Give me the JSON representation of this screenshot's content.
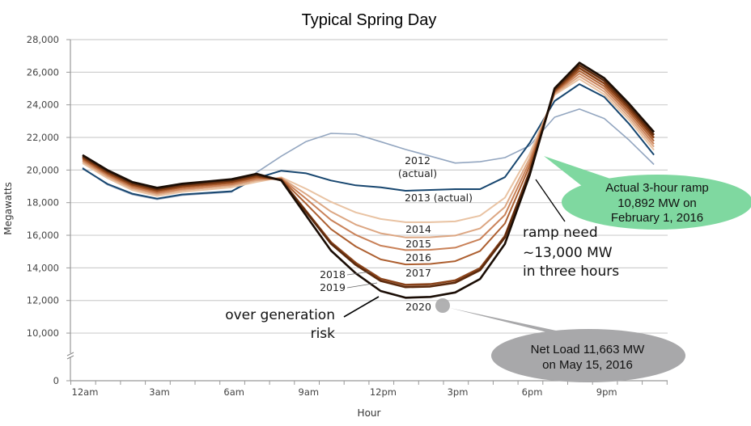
{
  "chart_data": {
    "type": "line",
    "title": "Typical Spring Day",
    "xlabel": "Hour",
    "ylabel": "Megawatts",
    "ylim": [
      0,
      28000
    ],
    "yaxis_break": [
      0,
      10000
    ],
    "yticks": [
      "0",
      "10,000",
      "12,000",
      "14,000",
      "16,000",
      "18,000",
      "20,000",
      "22,000",
      "24,000",
      "26,000",
      "28,000"
    ],
    "ytick_values": [
      0,
      10000,
      12000,
      14000,
      16000,
      18000,
      20000,
      22000,
      24000,
      26000,
      28000
    ],
    "xticks": [
      "12am",
      "3am",
      "6am",
      "9am",
      "12pm",
      "3pm",
      "6pm",
      "9pm"
    ],
    "x": [
      0,
      1,
      2,
      3,
      4,
      5,
      6,
      7,
      8,
      9,
      10,
      11,
      12,
      13,
      14,
      15,
      16,
      17,
      18,
      19,
      20,
      21,
      22,
      23
    ],
    "grid": true,
    "series": [
      {
        "name": "2012",
        "label": [
          "2012",
          "(actual)"
        ],
        "color": "#93a6c0",
        "values": [
          20150,
          19100,
          18500,
          18200,
          18450,
          18550,
          18650,
          19850,
          20850,
          21750,
          22250,
          22200,
          21740,
          21260,
          20850,
          20430,
          20510,
          20760,
          21500,
          23240,
          23740,
          23160,
          21830,
          20340
        ]
      },
      {
        "name": "2013",
        "label": [
          "2013 (actual)"
        ],
        "color": "#17466f",
        "values": [
          20100,
          19150,
          18550,
          18250,
          18500,
          18600,
          18700,
          19500,
          19960,
          19800,
          19360,
          19060,
          18940,
          18730,
          18780,
          18830,
          18830,
          19560,
          21670,
          24230,
          25270,
          24480,
          22830,
          20930
        ]
      },
      {
        "name": "2014",
        "label": [
          "2014"
        ],
        "color": "#e9c3a3",
        "values": [
          20420,
          19500,
          18770,
          18410,
          18660,
          18800,
          18940,
          19270,
          19550,
          18850,
          18050,
          17400,
          17000,
          16800,
          16800,
          16850,
          17200,
          18300,
          21000,
          24610,
          25580,
          24640,
          23070,
          21230
        ]
      },
      {
        "name": "2015",
        "label": [
          "2015"
        ],
        "color": "#dca682",
        "values": [
          20520,
          19600,
          18870,
          18510,
          18760,
          18900,
          19040,
          19370,
          19510,
          18520,
          17450,
          16650,
          16120,
          15870,
          15880,
          15980,
          16420,
          17730,
          20740,
          24680,
          25750,
          24810,
          23240,
          21420
        ]
      },
      {
        "name": "2016",
        "label": [
          "2016"
        ],
        "color": "#c98158",
        "values": [
          20600,
          19680,
          18950,
          18590,
          18840,
          18980,
          19120,
          19450,
          19480,
          18240,
          16940,
          16020,
          15360,
          15090,
          15110,
          15240,
          15760,
          17250,
          20520,
          24750,
          25920,
          24980,
          23410,
          21600
        ]
      },
      {
        "name": "2017",
        "label": [
          "2017"
        ],
        "color": "#ad5f30",
        "values": [
          20690,
          19770,
          19040,
          18680,
          18930,
          19070,
          19210,
          19540,
          19440,
          17930,
          16380,
          15310,
          14520,
          14210,
          14240,
          14410,
          15030,
          16720,
          20270,
          24810,
          26080,
          25140,
          23570,
          21780
        ]
      },
      {
        "name": "2018",
        "label": [
          "2018"
        ],
        "color": "#8a431a",
        "values": [
          20770,
          19850,
          19120,
          18760,
          19010,
          19150,
          19290,
          19620,
          19390,
          17480,
          15570,
          14300,
          13330,
          12960,
          13000,
          13230,
          13980,
          15950,
          19920,
          24880,
          26250,
          25310,
          23740,
          21970
        ]
      },
      {
        "name": "2019",
        "label": [
          "2019"
        ],
        "color": "#5c2a0d",
        "values": [
          20850,
          19930,
          19200,
          18840,
          19090,
          19230,
          19370,
          19700,
          19390,
          17430,
          15480,
          14180,
          13200,
          12820,
          12860,
          13090,
          13860,
          15870,
          19880,
          24940,
          26420,
          25480,
          23910,
          22150
        ]
      },
      {
        "name": "2020",
        "label": [
          "2020"
        ],
        "color": "#1a0d05",
        "values": [
          20920,
          20000,
          19270,
          18910,
          19160,
          19300,
          19440,
          19770,
          19360,
          17200,
          15060,
          13660,
          12580,
          12170,
          12220,
          12490,
          13320,
          15470,
          19700,
          25010,
          26580,
          25640,
          24070,
          22330
        ]
      }
    ],
    "annotations": {
      "over_generation": [
        "over generation",
        "risk"
      ],
      "ramp_need": [
        "ramp need",
        "~13,000 MW",
        "in three hours"
      ],
      "green_callout": {
        "lines": [
          "Actual 3-hour ramp",
          "10,892 MW on",
          "February 1, 2016"
        ],
        "color": "#7fd8a0"
      },
      "gray_callout": {
        "lines": [
          "Net Load 11,663 MW",
          "on May 15, 2016"
        ],
        "color": "#a8a8aa"
      }
    }
  }
}
